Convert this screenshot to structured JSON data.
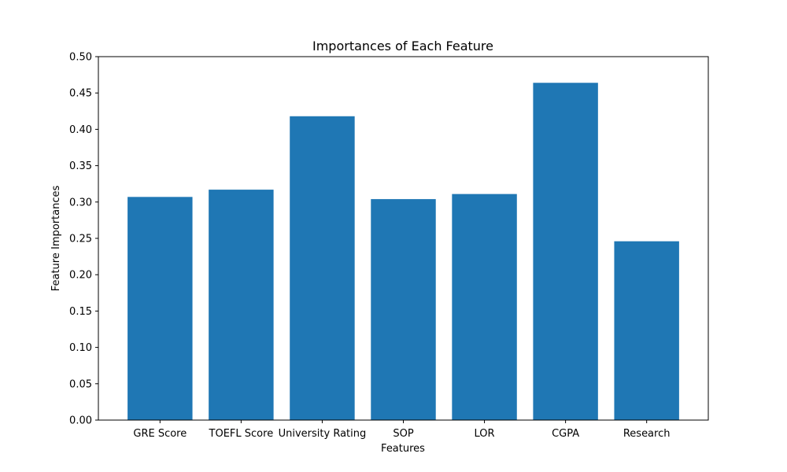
{
  "chart_data": {
    "type": "bar",
    "title": "Importances of Each Feature",
    "xlabel": "Features",
    "ylabel": "Feature Importances",
    "categories": [
      "GRE Score",
      "TOEFL Score",
      "University Rating",
      "SOP",
      "LOR",
      "CGPA",
      "Research"
    ],
    "values": [
      0.307,
      0.317,
      0.418,
      0.304,
      0.311,
      0.464,
      0.246
    ],
    "ylim": [
      0,
      0.5
    ],
    "yticks": [
      "0.00",
      "0.05",
      "0.10",
      "0.15",
      "0.20",
      "0.25",
      "0.30",
      "0.35",
      "0.40",
      "0.45",
      "0.50"
    ],
    "grid": false,
    "bar_color": "#1f77b4"
  }
}
